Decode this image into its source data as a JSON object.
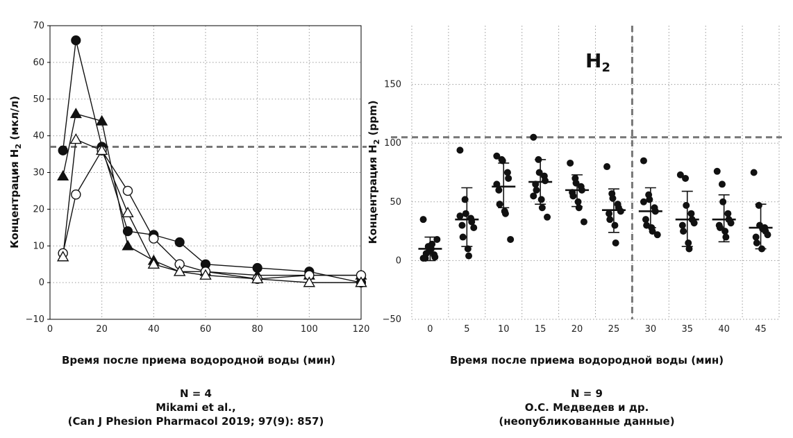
{
  "chart_data": [
    {
      "type": "line",
      "xlabel": "Время после приема водородной воды (мин)",
      "ylabel_main": "Концентрация H",
      "ylabel_sub": "2",
      "ylabel_unit": " (мкл/л)",
      "xlim": [
        0,
        120
      ],
      "ylim": [
        -10,
        70
      ],
      "x_ticks": [
        0,
        20,
        40,
        60,
        80,
        100,
        120
      ],
      "x_tick_labels": [
        "0",
        "20",
        "40",
        "60",
        "80",
        "100",
        "120"
      ],
      "y_ticks": [
        -10,
        0,
        10,
        20,
        30,
        40,
        50,
        60,
        70
      ],
      "y_tick_labels": [
        "−10",
        "0",
        "10",
        "20",
        "30",
        "40",
        "50",
        "60",
        "70"
      ],
      "reference_line_y": 37,
      "series": [
        {
          "marker": "circle-filled",
          "x": [
            5,
            10,
            20,
            30,
            40,
            50,
            60,
            80,
            100,
            120
          ],
          "y": [
            36,
            66,
            37,
            14,
            13,
            11,
            5,
            4,
            3,
            0
          ]
        },
        {
          "marker": "triangle-filled",
          "x": [
            5,
            10,
            20,
            30,
            40,
            50,
            60,
            80,
            100,
            120
          ],
          "y": [
            29,
            46,
            44,
            10,
            6,
            3,
            3,
            2,
            2,
            2
          ]
        },
        {
          "marker": "circle-open",
          "x": [
            5,
            10,
            20,
            30,
            40,
            50,
            60,
            80,
            100,
            120
          ],
          "y": [
            8,
            24,
            36,
            25,
            12,
            5,
            3,
            1,
            2,
            2
          ]
        },
        {
          "marker": "triangle-open",
          "x": [
            5,
            10,
            20,
            30,
            40,
            50,
            60,
            80,
            100,
            120
          ],
          "y": [
            7,
            39,
            36,
            19,
            5,
            3,
            2,
            1,
            0,
            0
          ]
        }
      ],
      "caption_lines": [
        "N = 4",
        "Mikami et al.,",
        "(Can J Phesion Pharmacol 2019; 97(9): 857)"
      ]
    },
    {
      "type": "scatter",
      "title_main": "H",
      "title_sub": "2",
      "xlabel": "Время после приема водородной воды (мин)",
      "ylabel_main": "Концентрация H",
      "ylabel_sub": "2",
      "ylabel_unit": " (ppm)",
      "categories": [
        "0",
        "5",
        "10",
        "15",
        "20",
        "25",
        "30",
        "35",
        "40",
        "45"
      ],
      "ylim": [
        -50,
        200
      ],
      "y_ticks": [
        -50,
        0,
        50,
        100,
        150
      ],
      "y_tick_labels": [
        "−50",
        "0",
        "50",
        "100",
        "150"
      ],
      "reference_line_y": 105,
      "reference_line_x_between": [
        "25",
        "30"
      ],
      "groups": [
        {
          "points": [
            35,
            12,
            8,
            5,
            3,
            2,
            6,
            10,
            14,
            18,
            2
          ],
          "mean": 10,
          "sd": [
            0,
            20
          ]
        },
        {
          "points": [
            94,
            52,
            40,
            36,
            33,
            30,
            20,
            10,
            4,
            28,
            38
          ],
          "mean": 35,
          "sd": [
            12,
            62
          ]
        },
        {
          "points": [
            89,
            86,
            85,
            75,
            70,
            60,
            48,
            42,
            40,
            18,
            65
          ],
          "mean": 63,
          "sd": [
            45,
            83
          ]
        },
        {
          "points": [
            105,
            86,
            75,
            72,
            68,
            65,
            60,
            52,
            45,
            37,
            55
          ],
          "mean": 67,
          "sd": [
            48,
            86
          ]
        },
        {
          "points": [
            83,
            70,
            66,
            63,
            60,
            58,
            55,
            50,
            45,
            33
          ],
          "mean": 60,
          "sd": [
            46,
            73
          ]
        },
        {
          "points": [
            80,
            57,
            53,
            48,
            45,
            40,
            35,
            30,
            15,
            42
          ],
          "mean": 43,
          "sd": [
            24,
            61
          ]
        },
        {
          "points": [
            85,
            56,
            52,
            45,
            42,
            35,
            30,
            28,
            25,
            22,
            50
          ],
          "mean": 42,
          "sd": [
            28,
            62
          ]
        },
        {
          "points": [
            73,
            70,
            47,
            40,
            35,
            30,
            25,
            15,
            10,
            32
          ],
          "mean": 35,
          "sd": [
            12,
            59
          ]
        },
        {
          "points": [
            76,
            65,
            50,
            40,
            35,
            30,
            28,
            25,
            20,
            32
          ],
          "mean": 35,
          "sd": [
            16,
            56
          ]
        },
        {
          "points": [
            75,
            47,
            30,
            28,
            25,
            20,
            15,
            10,
            27,
            22
          ],
          "mean": 28,
          "sd": [
            10,
            48
          ]
        }
      ],
      "caption_lines": [
        "N = 9",
        "О.С. Медведев и др.",
        "(неопубликованные данные)"
      ]
    }
  ]
}
